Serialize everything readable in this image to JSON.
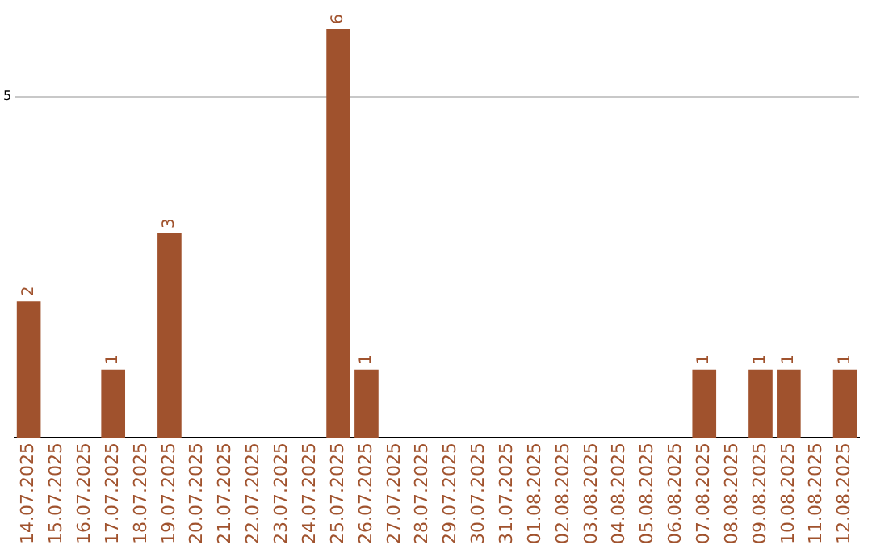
{
  "chart_data": {
    "type": "bar",
    "categories": [
      "14.07.2025",
      "15.07.2025",
      "16.07.2025",
      "17.07.2025",
      "18.07.2025",
      "19.07.2025",
      "20.07.2025",
      "21.07.2025",
      "22.07.2025",
      "23.07.2025",
      "24.07.2025",
      "25.07.2025",
      "26.07.2025",
      "27.07.2025",
      "28.07.2025",
      "29.07.2025",
      "30.07.2025",
      "31.07.2025",
      "01.08.2025",
      "02.08.2025",
      "03.08.2025",
      "04.08.2025",
      "05.08.2025",
      "06.08.2025",
      "07.08.2025",
      "08.08.2025",
      "09.08.2025",
      "10.08.2025",
      "11.08.2025",
      "12.08.2025"
    ],
    "values": [
      2,
      0,
      0,
      1,
      0,
      3,
      0,
      0,
      0,
      0,
      0,
      6,
      1,
      0,
      0,
      0,
      0,
      0,
      0,
      0,
      0,
      0,
      0,
      0,
      1,
      0,
      1,
      1,
      0,
      1
    ],
    "value_labels": [
      "2",
      null,
      null,
      "1",
      null,
      "3",
      null,
      null,
      null,
      null,
      null,
      "6",
      "1",
      null,
      null,
      null,
      null,
      null,
      null,
      null,
      null,
      null,
      null,
      null,
      "1",
      null,
      "1",
      "1",
      null,
      "1"
    ],
    "color": "#a0522d",
    "ylim": [
      0,
      6
    ],
    "yticks": [
      5
    ],
    "grid": "y",
    "legend": false
  }
}
